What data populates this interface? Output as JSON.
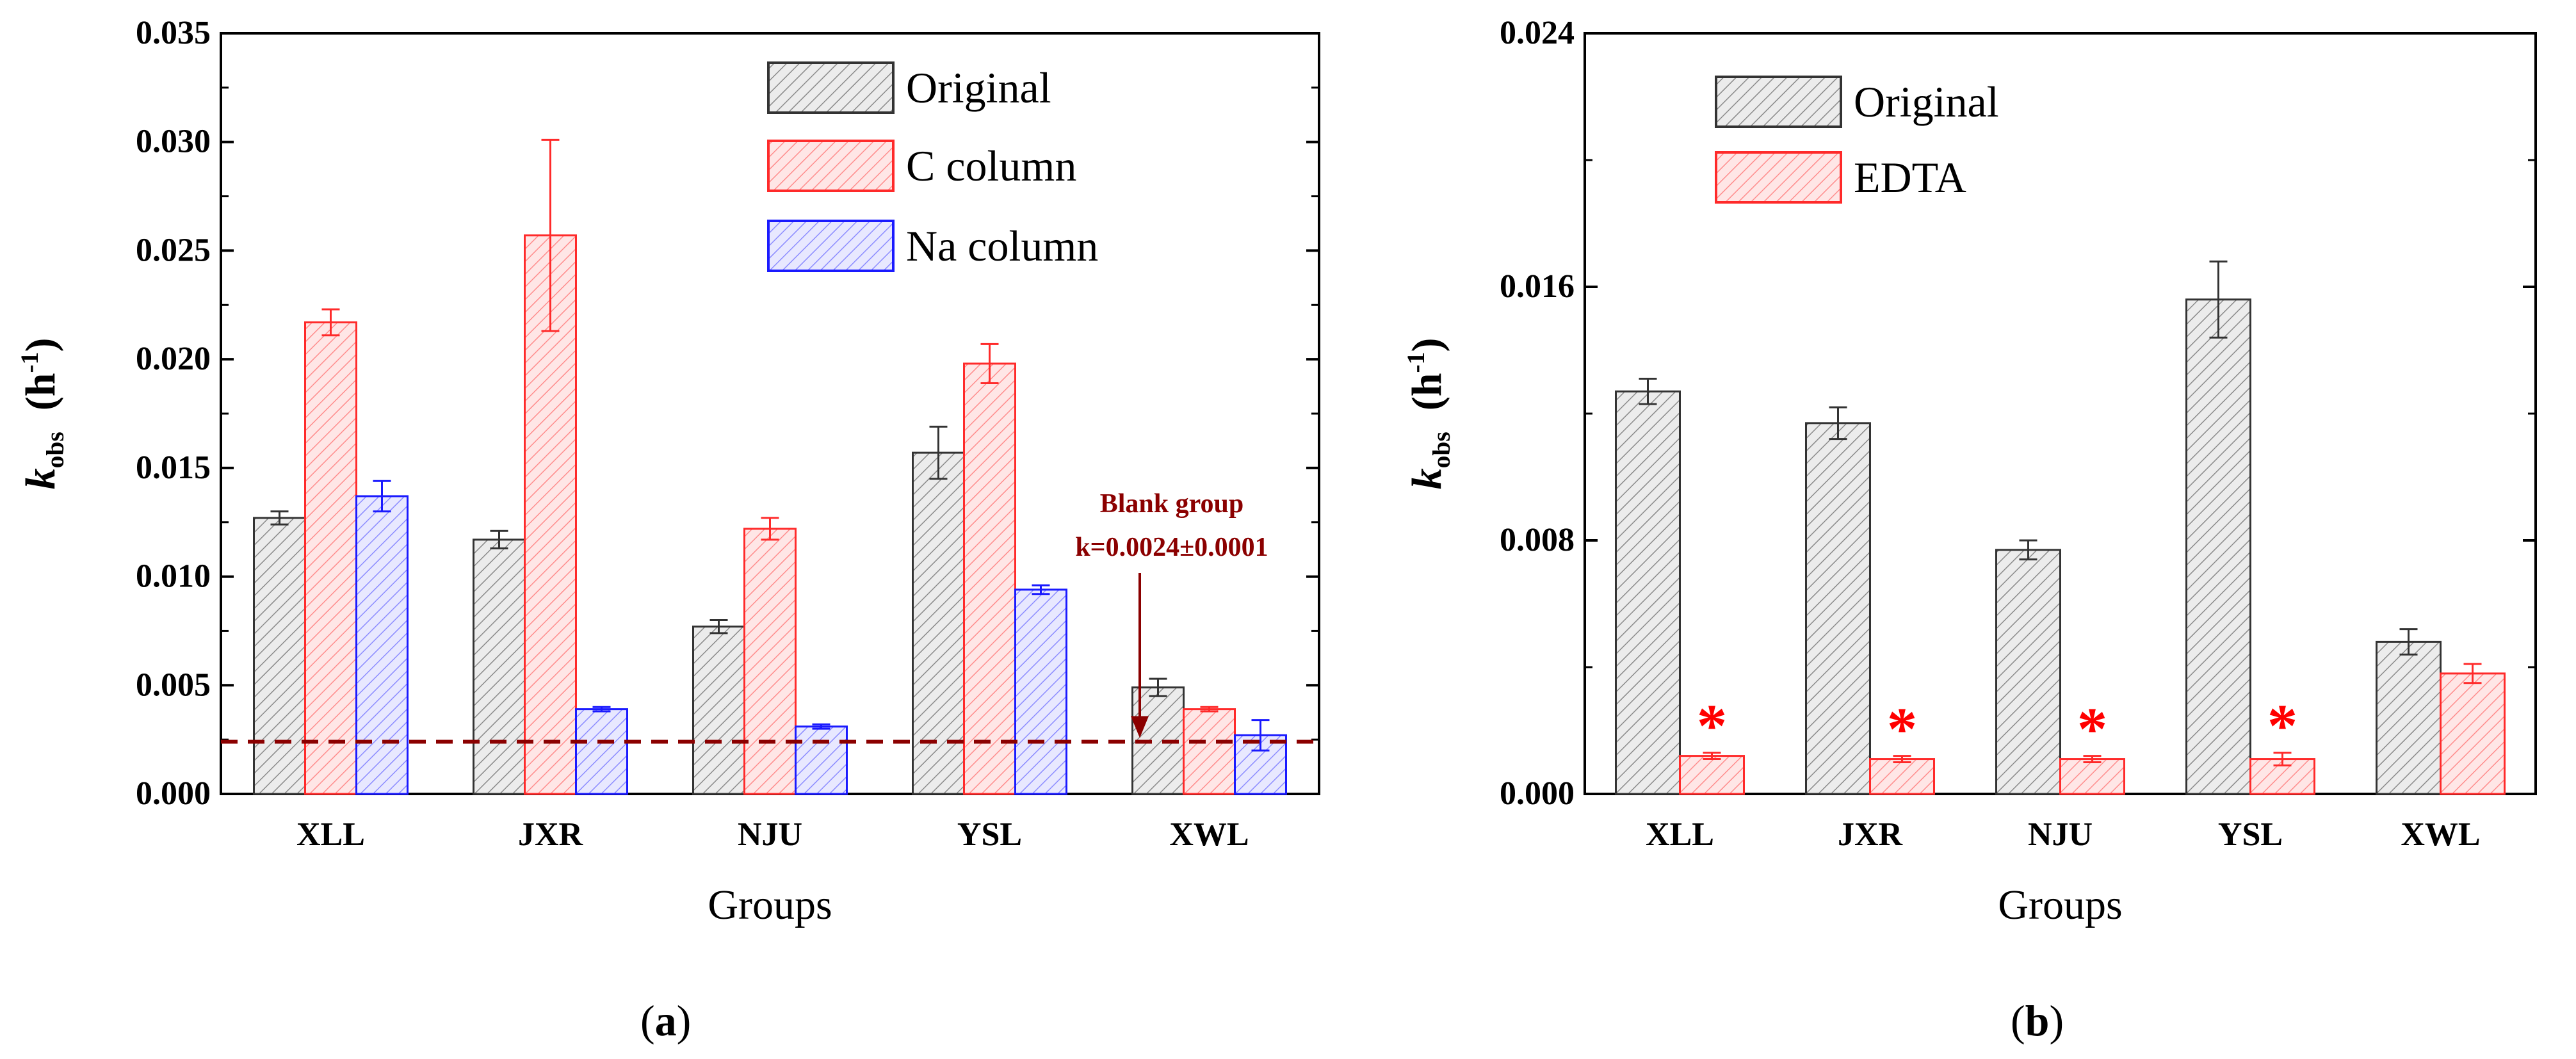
{
  "chart_data": [
    {
      "type": "bar",
      "panel": "a",
      "xlabel": "Groups",
      "ylabel_main": "k",
      "ylabel_sub": "obs",
      "ylabel_unit_open": "(h",
      "ylabel_unit_sup": "-1",
      "ylabel_unit_close": ")",
      "categories": [
        "XLL",
        "JXR",
        "NJU",
        "YSL",
        "XWL"
      ],
      "ylim": [
        0,
        0.035
      ],
      "yticks": [
        "0.000",
        "0.005",
        "0.010",
        "0.015",
        "0.020",
        "0.025",
        "0.030",
        "0.035"
      ],
      "series": [
        {
          "name": "Original",
          "color": "#333333",
          "fill": "#e6e6e6",
          "values": [
            0.0127,
            0.0117,
            0.0077,
            0.0157,
            0.0049
          ],
          "errors": [
            0.0003,
            0.0004,
            0.0003,
            0.0012,
            0.0004
          ]
        },
        {
          "name": "C column",
          "color": "#ff2a2a",
          "fill": "#ffe0e0",
          "values": [
            0.0217,
            0.0257,
            0.0122,
            0.0198,
            0.0039
          ],
          "errors": [
            0.0006,
            0.0044,
            0.0005,
            0.0009,
            0.0001
          ]
        },
        {
          "name": "Na column",
          "color": "#1a1aff",
          "fill": "#e2e2ff",
          "values": [
            0.0137,
            0.0039,
            0.0031,
            0.0094,
            0.0027
          ],
          "errors": [
            0.0007,
            0.0001,
            0.0001,
            0.0002,
            0.0007
          ]
        }
      ],
      "reference_line": {
        "value": 0.0024,
        "color": "#8b0000"
      },
      "annotation": {
        "line1": "Blank group",
        "line2": "k=0.0024±0.0001",
        "color": "#8b0000"
      },
      "legend": "top-right"
    },
    {
      "type": "bar",
      "panel": "b",
      "xlabel": "Groups",
      "ylabel_main": "k",
      "ylabel_sub": "obs",
      "ylabel_unit_open": "(h",
      "ylabel_unit_sup": "-1",
      "ylabel_unit_close": ")",
      "categories": [
        "XLL",
        "JXR",
        "NJU",
        "YSL",
        "XWL"
      ],
      "ylim": [
        0,
        0.024
      ],
      "yticks": [
        "0.000",
        "0.008",
        "0.016",
        "0.024"
      ],
      "minor_ticks": [
        0.004,
        0.012,
        0.02
      ],
      "series": [
        {
          "name": "Original",
          "color": "#333333",
          "fill": "#e6e6e6",
          "values": [
            0.0127,
            0.0117,
            0.0077,
            0.0156,
            0.0048
          ],
          "errors": [
            0.0004,
            0.0005,
            0.0003,
            0.0012,
            0.0004
          ]
        },
        {
          "name": "EDTA",
          "color": "#ff2a2a",
          "fill": "#ffe0e0",
          "values": [
            0.0012,
            0.0011,
            0.0011,
            0.0011,
            0.0038
          ],
          "errors": [
            0.0001,
            0.0001,
            0.0001,
            0.0002,
            0.0003
          ]
        }
      ],
      "significance_marker": "*",
      "significance_color": "#ff0000",
      "significant": [
        true,
        true,
        true,
        true,
        false
      ],
      "legend": "top-left"
    }
  ],
  "panel_labels": {
    "a_open": "(",
    "a": "a",
    "a_close": ")",
    "b_open": "(",
    "b": "b",
    "b_close": ")"
  }
}
